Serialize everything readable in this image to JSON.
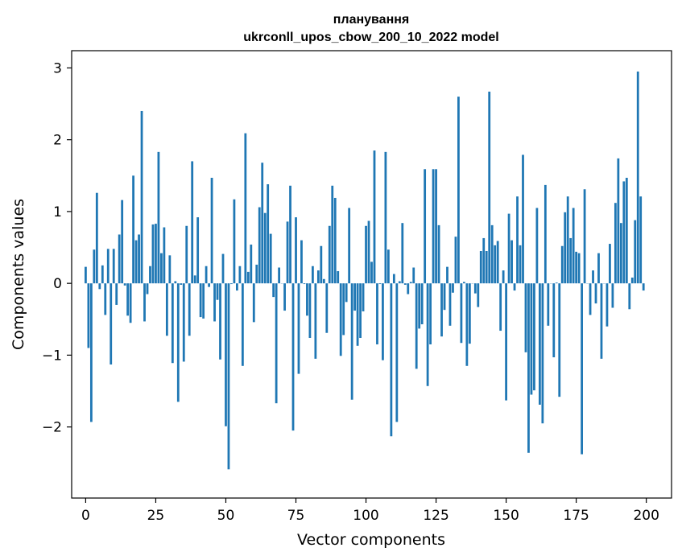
{
  "chart_data": {
    "type": "bar",
    "title_line1": "планування",
    "title_line2": "ukrconll_upos_cbow_200_10_2022 model",
    "xlabel": "Vector components",
    "ylabel": "Components values",
    "xlim": [
      -5,
      209
    ],
    "ylim": [
      -2.99,
      3.24
    ],
    "x_ticks": [
      0,
      25,
      50,
      75,
      100,
      125,
      150,
      175,
      200
    ],
    "y_ticks": [
      -2,
      -1,
      0,
      1,
      2,
      3
    ],
    "y_tick_labels": [
      "−2",
      "−1",
      "0",
      "1",
      "2",
      "3"
    ],
    "bar_color": "#1f77b4",
    "values": [
      0.23,
      -0.9,
      -1.93,
      0.47,
      1.26,
      -0.08,
      0.25,
      -0.44,
      0.48,
      -1.13,
      0.48,
      -0.3,
      0.68,
      1.16,
      -0.03,
      -0.45,
      -0.55,
      1.5,
      0.6,
      0.68,
      2.4,
      -0.53,
      -0.15,
      0.24,
      0.82,
      0.83,
      1.83,
      0.42,
      0.78,
      -0.73,
      0.39,
      -1.11,
      0.03,
      -1.65,
      -0.02,
      -1.09,
      0.8,
      -0.73,
      1.7,
      0.11,
      0.92,
      -0.47,
      -0.49,
      0.24,
      -0.05,
      1.47,
      -0.53,
      -0.23,
      -1.06,
      0.41,
      -1.99,
      -2.59,
      -0.01,
      1.17,
      -0.1,
      0.24,
      -1.15,
      2.09,
      0.16,
      0.54,
      -0.54,
      0.26,
      1.06,
      1.68,
      0.98,
      1.38,
      0.69,
      -0.19,
      -1.67,
      0.22,
      0.0,
      -0.38,
      0.86,
      1.36,
      -2.05,
      0.92,
      -1.26,
      0.6,
      -0.01,
      -0.45,
      -0.76,
      0.24,
      -1.05,
      0.18,
      0.52,
      0.06,
      -0.69,
      0.8,
      1.36,
      1.19,
      0.17,
      -1.01,
      -0.72,
      -0.26,
      1.05,
      -1.62,
      -0.38,
      -0.87,
      -0.76,
      -0.39,
      0.8,
      0.87,
      0.3,
      1.85,
      -0.85,
      -0.01,
      -1.07,
      1.83,
      0.47,
      -2.13,
      0.13,
      -1.93,
      0.03,
      0.84,
      -0.02,
      -0.15,
      0.02,
      0.22,
      -1.19,
      -0.63,
      -0.57,
      1.59,
      -1.43,
      -0.85,
      1.59,
      1.59,
      0.81,
      -0.74,
      -0.37,
      0.23,
      -0.59,
      -0.13,
      0.65,
      2.6,
      -0.83,
      0.02,
      -1.15,
      -0.84,
      0.0,
      -0.14,
      -0.33,
      0.45,
      0.63,
      0.45,
      2.67,
      0.81,
      0.53,
      0.59,
      -0.66,
      0.18,
      -1.63,
      0.97,
      0.6,
      -0.1,
      1.21,
      0.53,
      1.79,
      -0.96,
      -2.36,
      -1.55,
      -1.49,
      1.05,
      -1.69,
      -1.95,
      1.37,
      -0.59,
      0.0,
      -1.03,
      0.01,
      -1.58,
      0.52,
      0.99,
      1.21,
      0.63,
      1.05,
      0.44,
      0.42,
      -2.38,
      1.31,
      0.0,
      -0.44,
      0.18,
      -0.28,
      0.42,
      -1.05,
      0.0,
      -0.6,
      0.55,
      -0.34,
      1.12,
      1.74,
      0.84,
      1.42,
      1.47,
      -0.36,
      0.08,
      0.88,
      2.95,
      1.21,
      -0.1
    ]
  }
}
